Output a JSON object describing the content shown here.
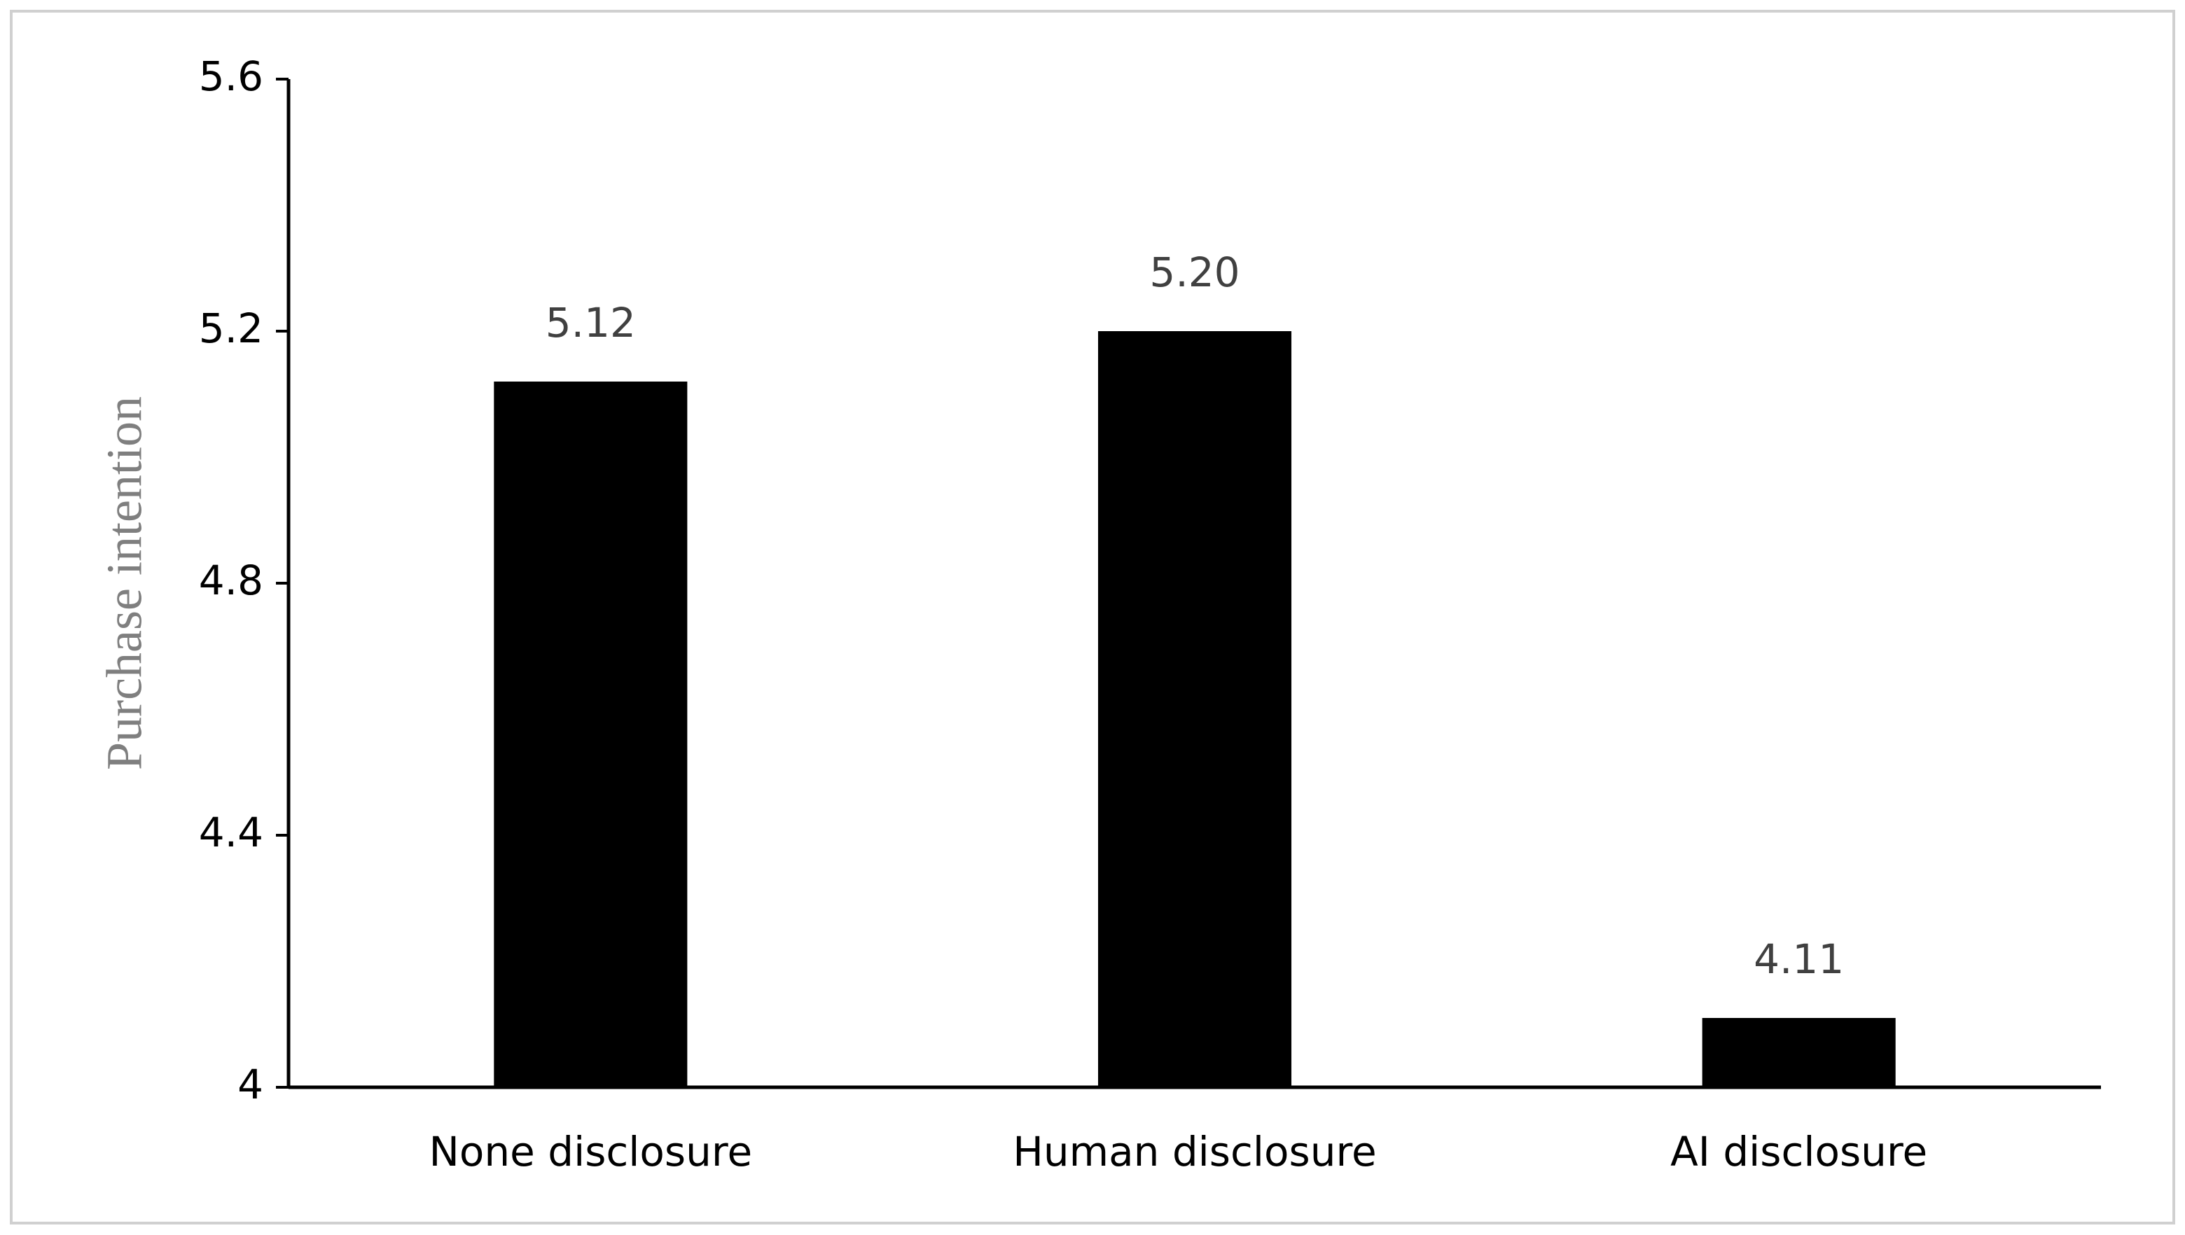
{
  "chart_data": {
    "type": "bar",
    "y_label": "Purchase intention",
    "categories": [
      "None disclosure",
      "Human disclosure",
      "AI disclosure"
    ],
    "values": [
      5.12,
      5.2,
      4.11
    ],
    "value_labels": [
      "5.12",
      "5.20",
      "4.11"
    ],
    "color": "#000000",
    "ylim": [
      4,
      5.6
    ],
    "yticks": [
      4,
      4.4,
      4.8,
      5.2,
      5.6
    ],
    "grid": false
  }
}
